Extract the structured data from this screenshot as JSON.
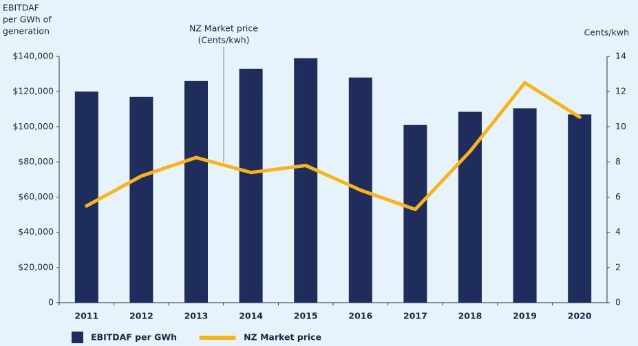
{
  "chart_data": {
    "type": "bar_line",
    "y_label": [
      "EBITDAF",
      "per GWh of",
      "generation"
    ],
    "y2_label": "Cents/kwh",
    "annotation": [
      "NZ Market price",
      "(Cents/kwh)"
    ],
    "categories": [
      "2011",
      "2012",
      "2013",
      "2014",
      "2015",
      "2016",
      "2017",
      "2018",
      "2019",
      "2020"
    ],
    "series": [
      {
        "name": "EBITDAF per GWh",
        "type": "bar",
        "color": "#1f2d5c",
        "values": [
          120000,
          117000,
          126000,
          133000,
          139000,
          128000,
          101000,
          108500,
          110500,
          107000
        ]
      },
      {
        "name": "NZ Market price",
        "type": "line",
        "axis": "y2",
        "color": "#fbb418",
        "values": [
          5.5,
          7.2,
          8.25,
          7.4,
          7.8,
          6.4,
          5.3,
          8.6,
          12.5,
          10.55
        ]
      }
    ],
    "ylim": [
      0,
      140000
    ],
    "yticks": [
      0,
      {
        "value": 20000,
        "label": "$20,000"
      },
      {
        "value": 40000,
        "label": "$40,000"
      },
      {
        "value": 60000,
        "label": "$60,000"
      },
      {
        "value": 80000,
        "label": "$80,000"
      },
      {
        "value": 100000,
        "label": "$100,000"
      },
      {
        "value": 120000,
        "label": "$120,000"
      },
      {
        "value": 140000,
        "label": "$140,000"
      }
    ],
    "y2lim": [
      0,
      14
    ],
    "y2ticks": [
      0,
      2,
      4,
      6,
      8,
      10,
      12,
      14
    ],
    "legend": "bottom-left"
  }
}
